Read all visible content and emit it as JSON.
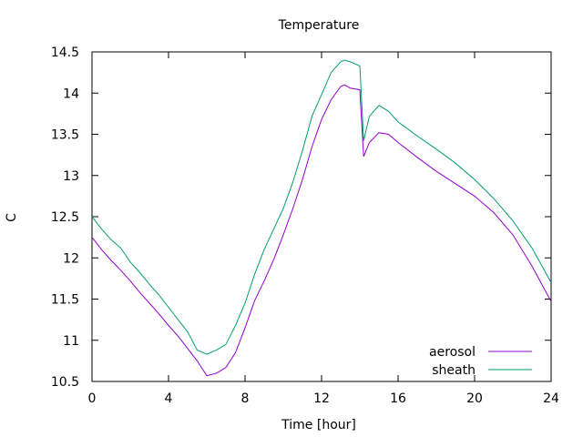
{
  "chart_data": {
    "type": "line",
    "title": "Temperature",
    "xlabel": "Time [hour]",
    "ylabel": "C",
    "xlim": [
      0,
      24
    ],
    "ylim": [
      10.5,
      14.5
    ],
    "xticks": [
      0,
      4,
      8,
      12,
      16,
      20,
      24
    ],
    "xtick_labels": [
      "0",
      "4",
      "8",
      "12",
      "16",
      "20",
      "24"
    ],
    "yticks": [
      10.5,
      11,
      11.5,
      12,
      12.5,
      13,
      13.5,
      14,
      14.5
    ],
    "ytick_labels": [
      "10.5",
      "11",
      "11.5",
      "12",
      "12.5",
      "13",
      "13.5",
      "14",
      "14.5"
    ],
    "grid": false,
    "legend_position": "bottom-right",
    "series": [
      {
        "name": "aerosol",
        "color": "#9400d3",
        "x": [
          0,
          0.5,
          1,
          1.5,
          2,
          2.5,
          3,
          3.5,
          4,
          4.5,
          5,
          5.5,
          6,
          6.5,
          7,
          7.5,
          8,
          8.5,
          9,
          9.5,
          10,
          10.5,
          11,
          11.5,
          12,
          12.5,
          13,
          13.2,
          13.5,
          14,
          14.05,
          14.2,
          14.5,
          15,
          15.5,
          16,
          17,
          18,
          19,
          20,
          21,
          22,
          23,
          24
        ],
        "y": [
          12.25,
          12.1,
          11.97,
          11.85,
          11.72,
          11.58,
          11.45,
          11.32,
          11.18,
          11.05,
          10.9,
          10.75,
          10.57,
          10.6,
          10.67,
          10.85,
          11.15,
          11.48,
          11.72,
          11.98,
          12.28,
          12.6,
          12.95,
          13.35,
          13.68,
          13.92,
          14.08,
          14.1,
          14.06,
          14.04,
          13.82,
          13.23,
          13.4,
          13.52,
          13.5,
          13.4,
          13.22,
          13.05,
          12.9,
          12.75,
          12.55,
          12.28,
          11.9,
          11.47
        ]
      },
      {
        "name": "sheath",
        "color": "#009e73",
        "x": [
          0,
          0.5,
          1,
          1.5,
          2,
          2.5,
          3,
          3.5,
          4,
          4.5,
          5,
          5.5,
          6,
          6.5,
          7,
          7.5,
          8,
          8.5,
          9,
          9.5,
          10,
          10.5,
          11,
          11.5,
          12,
          12.5,
          13,
          13.2,
          13.5,
          14,
          14.05,
          14.2,
          14.5,
          15,
          15.5,
          16,
          17,
          18,
          19,
          20,
          21,
          22,
          23,
          24
        ],
        "y": [
          12.5,
          12.35,
          12.22,
          12.12,
          11.95,
          11.82,
          11.68,
          11.55,
          11.4,
          11.25,
          11.1,
          10.88,
          10.83,
          10.88,
          10.95,
          11.18,
          11.45,
          11.8,
          12.1,
          12.35,
          12.6,
          12.92,
          13.3,
          13.72,
          13.98,
          14.25,
          14.38,
          14.4,
          14.38,
          14.33,
          14.1,
          13.42,
          13.72,
          13.85,
          13.78,
          13.65,
          13.48,
          13.32,
          13.15,
          12.95,
          12.72,
          12.45,
          12.12,
          11.7
        ]
      }
    ]
  }
}
